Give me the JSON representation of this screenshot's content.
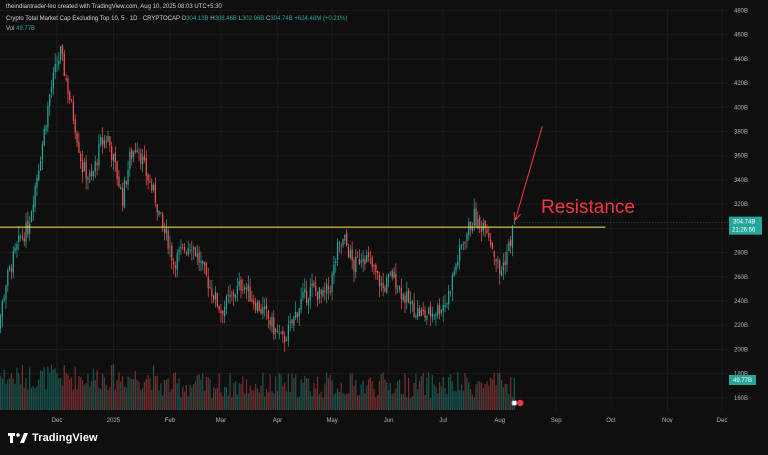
{
  "header": {
    "creator_line": "theindiantrader-leo created with TradingView.com, Aug 10, 2025 08:03 UTC+5:30",
    "symbol": "Crypto Total Market Cap Excluding Top 10, 5 · 1D · CRYPTOCAP",
    "o_label": "O",
    "o_value": "304.13B",
    "h_label": "H",
    "h_value": "308.46B",
    "l_label": "L",
    "l_value": "302.96B",
    "c_label": "C",
    "c_value": "304.74B",
    "change": "+624.48M (+0.21%)",
    "vol_label": "Vol",
    "vol_value": "49.77B"
  },
  "brand": {
    "name": "TradingView"
  },
  "colors": {
    "background": "#0f0f0f",
    "up": "#26a69a",
    "down": "#ef5350",
    "resistance_line": "#ffeb3b",
    "annotation": "#f23645",
    "price_tag": "#26a69a"
  },
  "chart_data": {
    "type": "candlestick",
    "title": "Crypto Total Market Cap Excluding Top 10",
    "y_axis_ticks": [
      "480B",
      "460B",
      "440B",
      "420B",
      "400B",
      "380B",
      "360B",
      "340B",
      "320B",
      "300B",
      "280B",
      "260B",
      "240B",
      "220B",
      "200B",
      "180B",
      "160B"
    ],
    "y_axis_values": [
      480,
      460,
      440,
      420,
      400,
      380,
      360,
      340,
      320,
      300,
      280,
      260,
      240,
      220,
      200,
      180,
      160
    ],
    "ylim": [
      150,
      482
    ],
    "x_axis_labels": [
      "Dec",
      "2025",
      "Feb",
      "Mar",
      "Apr",
      "May",
      "Jun",
      "Jul",
      "Aug",
      "Sep",
      "Oct",
      "Nov",
      "Dec"
    ],
    "x_axis_days": [
      36,
      67,
      98,
      126,
      157,
      187,
      218,
      248,
      279,
      310,
      340,
      371,
      401
    ],
    "price_key_points": [
      {
        "day": 0,
        "value": 196
      },
      {
        "day": 4,
        "value": 220
      },
      {
        "day": 8,
        "value": 255
      },
      {
        "day": 12,
        "value": 275
      },
      {
        "day": 16,
        "value": 292
      },
      {
        "day": 20,
        "value": 300
      },
      {
        "day": 24,
        "value": 335
      },
      {
        "day": 28,
        "value": 370
      },
      {
        "day": 32,
        "value": 410
      },
      {
        "day": 35,
        "value": 430
      },
      {
        "day": 38,
        "value": 445
      },
      {
        "day": 42,
        "value": 415
      },
      {
        "day": 46,
        "value": 385
      },
      {
        "day": 50,
        "value": 350
      },
      {
        "day": 55,
        "value": 340
      },
      {
        "day": 60,
        "value": 370
      },
      {
        "day": 64,
        "value": 375
      },
      {
        "day": 68,
        "value": 350
      },
      {
        "day": 72,
        "value": 325
      },
      {
        "day": 76,
        "value": 358
      },
      {
        "day": 80,
        "value": 370
      },
      {
        "day": 85,
        "value": 345
      },
      {
        "day": 90,
        "value": 325
      },
      {
        "day": 94,
        "value": 300
      },
      {
        "day": 97,
        "value": 290
      },
      {
        "day": 100,
        "value": 272
      },
      {
        "day": 105,
        "value": 282
      },
      {
        "day": 110,
        "value": 288
      },
      {
        "day": 115,
        "value": 270
      },
      {
        "day": 120,
        "value": 252
      },
      {
        "day": 126,
        "value": 232
      },
      {
        "day": 132,
        "value": 244
      },
      {
        "day": 138,
        "value": 255
      },
      {
        "day": 144,
        "value": 240
      },
      {
        "day": 150,
        "value": 230
      },
      {
        "day": 156,
        "value": 215
      },
      {
        "day": 160,
        "value": 207
      },
      {
        "day": 164,
        "value": 218
      },
      {
        "day": 170,
        "value": 240
      },
      {
        "day": 176,
        "value": 250
      },
      {
        "day": 182,
        "value": 243
      },
      {
        "day": 186,
        "value": 252
      },
      {
        "day": 190,
        "value": 282
      },
      {
        "day": 194,
        "value": 290
      },
      {
        "day": 199,
        "value": 268
      },
      {
        "day": 204,
        "value": 280
      },
      {
        "day": 210,
        "value": 265
      },
      {
        "day": 215,
        "value": 250
      },
      {
        "day": 220,
        "value": 262
      },
      {
        "day": 226,
        "value": 245
      },
      {
        "day": 232,
        "value": 233
      },
      {
        "day": 238,
        "value": 228
      },
      {
        "day": 244,
        "value": 232
      },
      {
        "day": 250,
        "value": 240
      },
      {
        "day": 254,
        "value": 265
      },
      {
        "day": 258,
        "value": 285
      },
      {
        "day": 262,
        "value": 300
      },
      {
        "day": 265,
        "value": 310
      },
      {
        "day": 268,
        "value": 300
      },
      {
        "day": 271,
        "value": 307
      },
      {
        "day": 274,
        "value": 290
      },
      {
        "day": 277,
        "value": 275
      },
      {
        "day": 279,
        "value": 262
      },
      {
        "day": 282,
        "value": 275
      },
      {
        "day": 285,
        "value": 290
      },
      {
        "day": 287,
        "value": 304.74
      }
    ],
    "last_close": 304.74,
    "last_open": 304.13,
    "last_high": 308.46,
    "last_low": 302.96,
    "resistance_level": 301,
    "resistance_label": "Resistance",
    "price_tag_value": "304.74B",
    "price_tag_countdown": "21:26:56",
    "volume_tag_value": "49.77B",
    "volume_last": 49.77
  }
}
